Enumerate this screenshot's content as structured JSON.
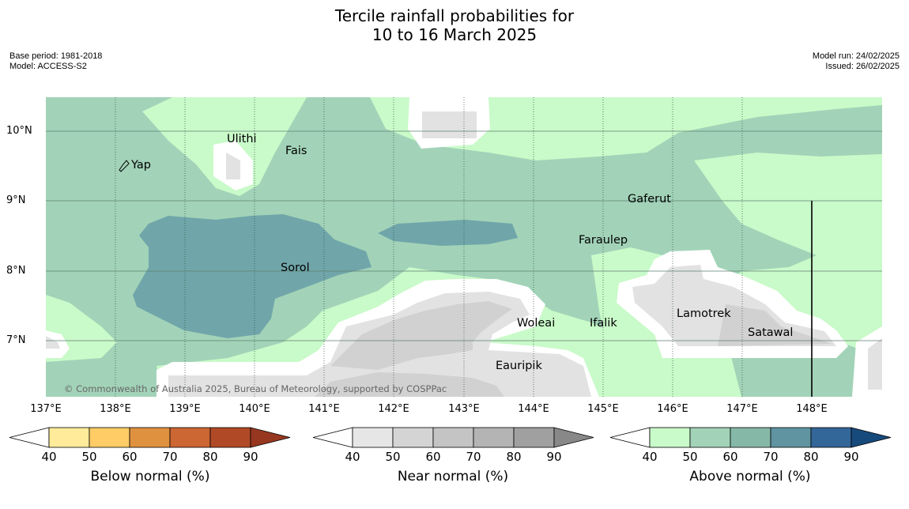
{
  "title": {
    "line1": "Tercile rainfall probabilities for",
    "line2": "10 to 16 March 2025"
  },
  "meta": {
    "base_period": "Base period: 1981-2018",
    "model": "Model: ACCESS-S2",
    "model_run": "Model run: 24/02/2025",
    "issued": "Issued: 26/02/2025"
  },
  "map": {
    "copyright": "© Commonwealth of Australia 2025, Bureau of Meteorology, supported by COSPPac",
    "lat_ticks": [
      "10°N",
      "9°N",
      "8°N",
      "7°N"
    ],
    "lon_ticks": [
      "137°E",
      "138°E",
      "139°E",
      "140°E",
      "141°E",
      "142°E",
      "143°E",
      "144°E",
      "145°E",
      "146°E",
      "147°E",
      "148°E"
    ],
    "places": [
      "Yap",
      "Ulithi",
      "Fais",
      "Gaferut",
      "Faraulep",
      "Sorol",
      "Woleai",
      "Ifalik",
      "Lamotrek",
      "Satawal",
      "Eauripik"
    ]
  },
  "legends": [
    {
      "title": "Below normal (%)",
      "ticks": [
        "40",
        "50",
        "60",
        "70",
        "80",
        "90"
      ],
      "colors": [
        "#fff",
        "#ffeb99",
        "#ffcc66",
        "#e0913f",
        "#cc6633",
        "#b04a26",
        "#983720"
      ]
    },
    {
      "title": "Near normal (%)",
      "ticks": [
        "40",
        "50",
        "60",
        "70",
        "80",
        "90"
      ],
      "colors": [
        "#fff",
        "#e6e6e6",
        "#d4d4d4",
        "#c4c4c4",
        "#b4b4b4",
        "#a0a0a0",
        "#888888"
      ]
    },
    {
      "title": "Above normal (%)",
      "ticks": [
        "40",
        "50",
        "60",
        "70",
        "80",
        "90"
      ],
      "colors": [
        "#fff",
        "#c9fac9",
        "#a2d3b8",
        "#86b8a8",
        "#5f94a0",
        "#336699",
        "#174a7c"
      ]
    }
  ]
}
